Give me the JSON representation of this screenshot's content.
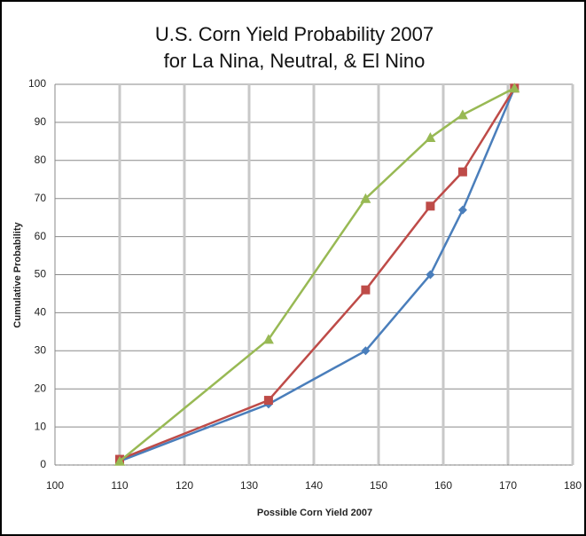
{
  "chart_data": {
    "type": "line",
    "title": [
      "U.S. Corn Yield Probability 2007",
      "for La Nina, Neutral, & El Nino"
    ],
    "x_label": "Possible Corn Yield 2007",
    "y_label": "Cumulative Probability",
    "x": [
      110,
      133,
      148,
      158,
      163,
      171
    ],
    "series": [
      {
        "color": "#4a7ebb",
        "marker": "diamond",
        "values": [
          1,
          16,
          30,
          50,
          67,
          99
        ]
      },
      {
        "color": "#be4b48",
        "marker": "square",
        "values": [
          1.5,
          17,
          46,
          68,
          77,
          99
        ]
      },
      {
        "color": "#98b954",
        "marker": "triangle",
        "values": [
          1,
          33,
          70,
          86,
          92,
          99
        ]
      }
    ],
    "xlim": [
      100,
      180
    ],
    "xticks": [
      100,
      110,
      120,
      130,
      140,
      150,
      160,
      170,
      180
    ],
    "ylim": [
      0,
      100
    ],
    "yticks": [
      0,
      10,
      20,
      30,
      40,
      50,
      60,
      70,
      80,
      90,
      100
    ],
    "grid": true
  }
}
